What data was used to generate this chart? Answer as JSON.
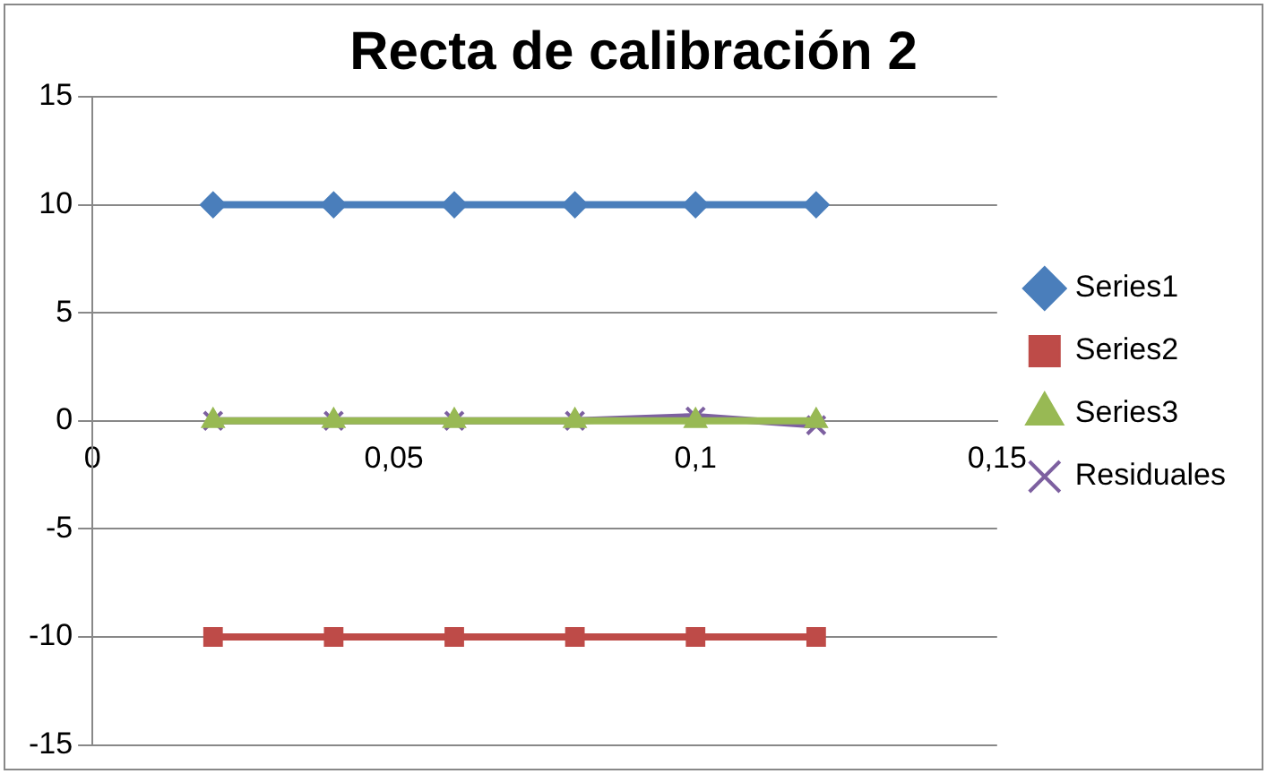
{
  "chart_data": {
    "type": "line",
    "title": "Recta de calibración 2",
    "x": [
      0.02,
      0.04,
      0.06,
      0.08,
      0.1,
      0.12
    ],
    "series": [
      {
        "name": "Series1",
        "color": "#4a7ebb",
        "marker": "diamond",
        "values": [
          10,
          10,
          10,
          10,
          10,
          10
        ]
      },
      {
        "name": "Series2",
        "color": "#be4b48",
        "marker": "square",
        "values": [
          -10,
          -10,
          -10,
          -10,
          -10,
          -10
        ]
      },
      {
        "name": "Series3",
        "color": "#98b954",
        "marker": "triangle",
        "values": [
          0,
          0,
          0,
          0,
          0,
          0
        ]
      },
      {
        "name": "Residuales",
        "color": "#7d60a0",
        "marker": "cross",
        "values": [
          0,
          0,
          0,
          0,
          0.2,
          -0.2
        ]
      }
    ],
    "xlim": [
      0,
      0.15
    ],
    "xticks": [
      {
        "value": 0,
        "label": "0"
      },
      {
        "value": 0.05,
        "label": "0,05"
      },
      {
        "value": 0.1,
        "label": "0,1"
      },
      {
        "value": 0.15,
        "label": "0,15"
      }
    ],
    "ylim": [
      -15,
      15
    ],
    "yticks": [
      -15,
      -10,
      -5,
      0,
      5,
      10,
      15
    ],
    "grid": "y",
    "legend": "right"
  }
}
